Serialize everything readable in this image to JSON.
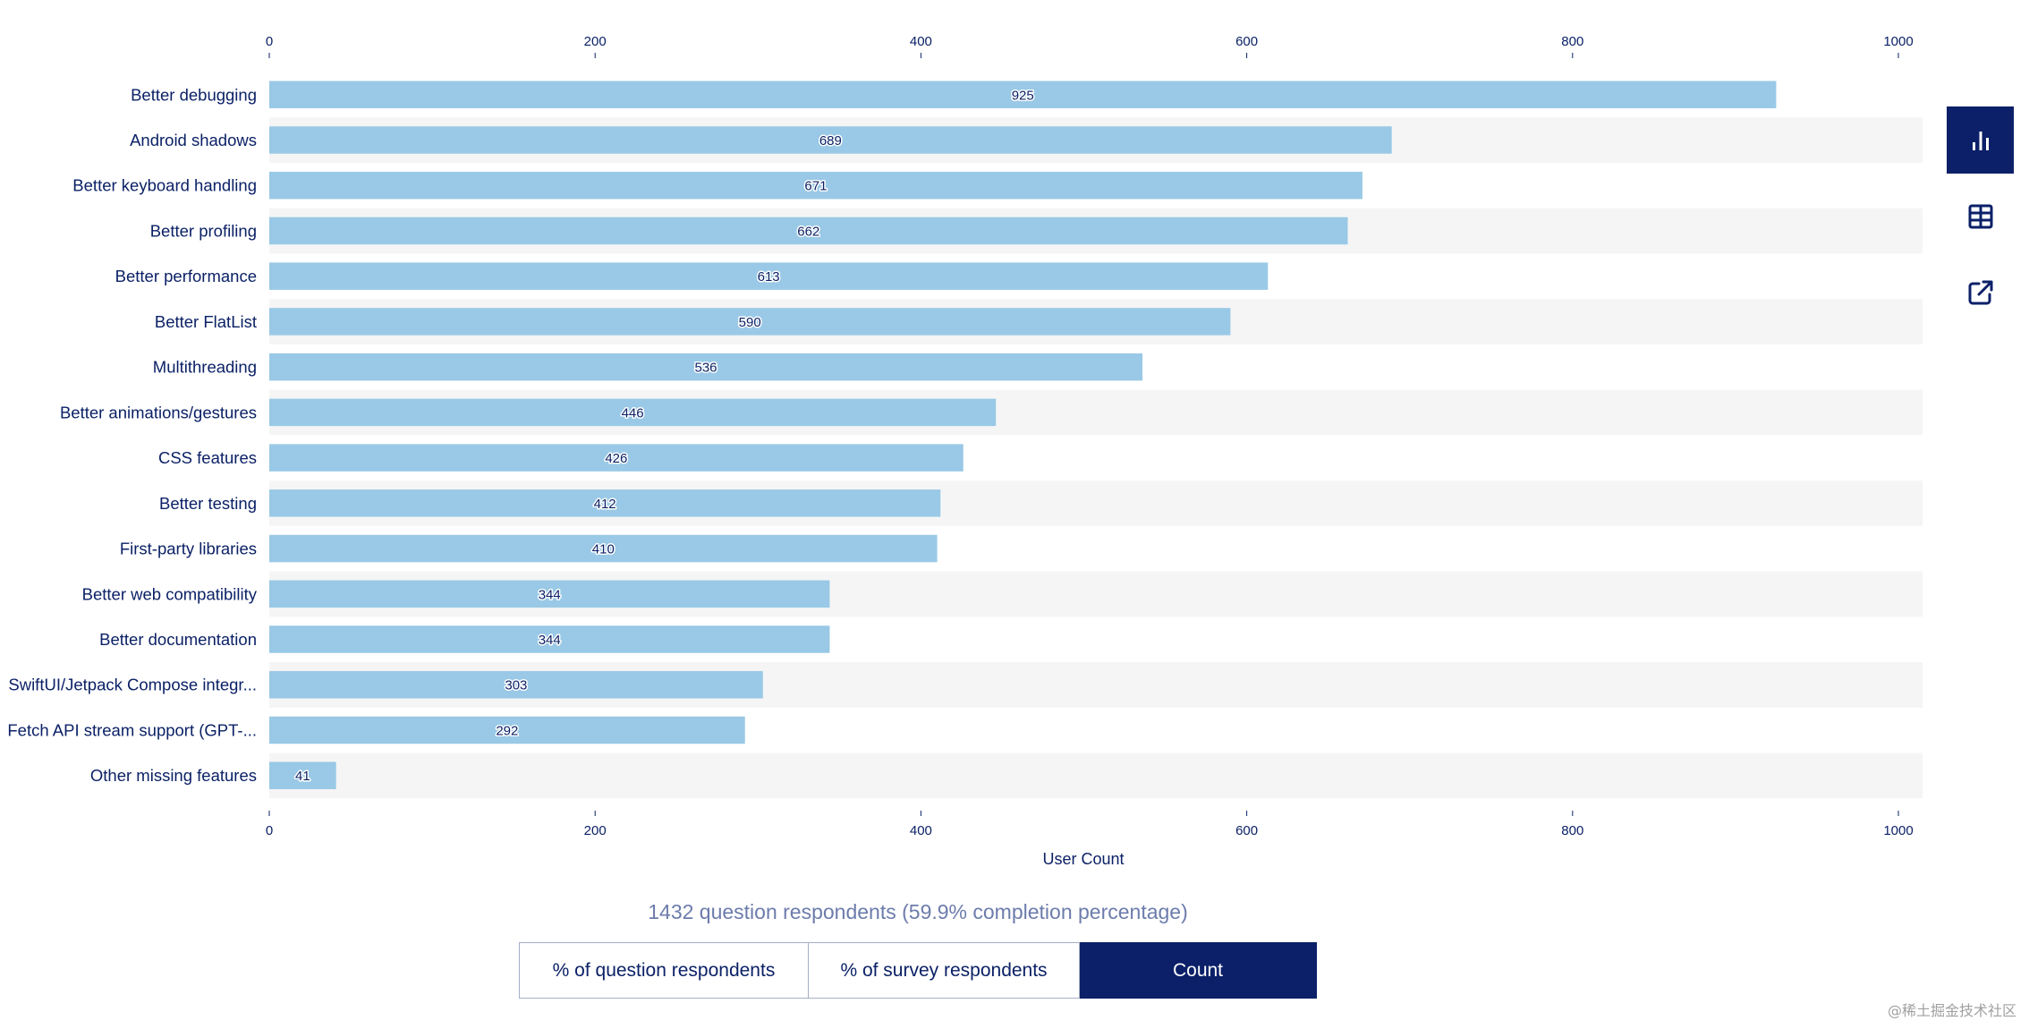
{
  "chart_data": {
    "type": "bar",
    "orientation": "horizontal",
    "title": "",
    "xlabel": "User Count",
    "ylabel": "",
    "xlim": [
      0,
      1000
    ],
    "xticks": [
      0,
      200,
      400,
      600,
      800,
      1000
    ],
    "xtick_labels": [
      "0",
      "200",
      "400",
      "600",
      "800",
      "1000"
    ],
    "axis_positions": [
      "top",
      "bottom"
    ],
    "grid": false,
    "row_striping": true,
    "categories": [
      "Better debugging",
      "Android shadows",
      "Better keyboard handling",
      "Better profiling",
      "Better performance",
      "Better FlatList",
      "Multithreading",
      "Better animations/gestures",
      "CSS features",
      "Better testing",
      "First-party libraries",
      "Better web compatibility",
      "Better documentation",
      "SwiftUI/Jetpack Compose integr...",
      "Fetch API stream support (GPT-...",
      "Other missing features"
    ],
    "values": [
      925,
      689,
      671,
      662,
      613,
      590,
      536,
      446,
      426,
      412,
      410,
      344,
      344,
      303,
      292,
      41
    ],
    "value_labels": [
      "925",
      "689",
      "671",
      "662",
      "613",
      "590",
      "536",
      "446",
      "426",
      "412",
      "410",
      "344",
      "344",
      "303",
      "292",
      "41"
    ],
    "colors": {
      "bar": "#99c9e6",
      "stripe": "#f5f5f5",
      "text": "#0b2166"
    }
  },
  "summary": {
    "respondents_text": "1432 question respondents (59.9% completion percentage)"
  },
  "view_toggle": {
    "buttons": [
      {
        "label": "% of question respondents",
        "active": false
      },
      {
        "label": "% of survey respondents",
        "active": false
      },
      {
        "label": "Count",
        "active": true
      }
    ]
  },
  "side_tools": [
    {
      "icon": "bar-chart-icon",
      "active": true
    },
    {
      "icon": "table-icon",
      "active": false
    },
    {
      "icon": "external-link-icon",
      "active": false
    }
  ],
  "watermark": "@稀土掘金技术社区",
  "theme": {
    "navy": "#0b2068",
    "subtitle": "#6c7cac"
  }
}
